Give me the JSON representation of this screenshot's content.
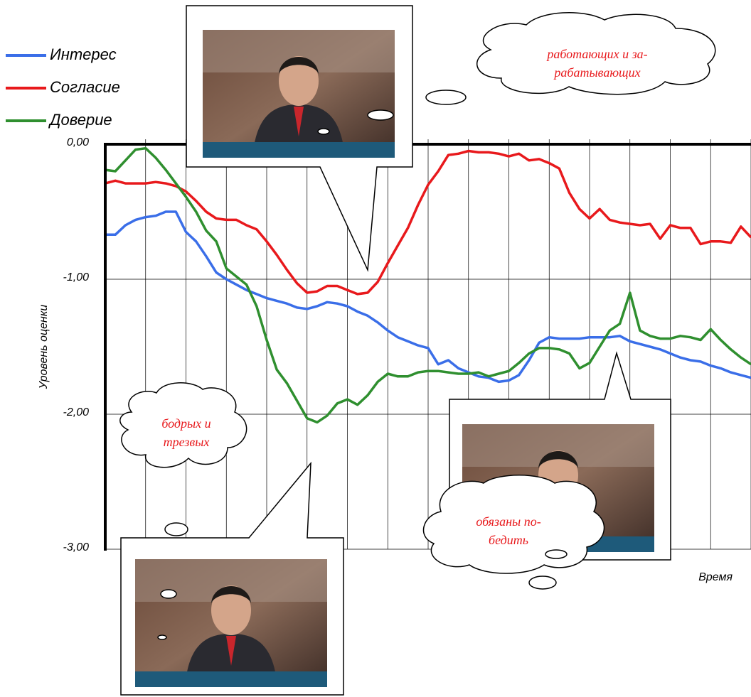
{
  "chart_data": {
    "type": "line",
    "y_label": "Уровень оценки",
    "x_label": "Время",
    "ylim": [
      -3,
      0
    ],
    "yticks": [
      {
        "value": 0,
        "label": "0,00"
      },
      {
        "value": -1,
        "label": "-1,00"
      },
      {
        "value": -2,
        "label": "-2,00"
      },
      {
        "value": -3,
        "label": "-3,00"
      }
    ],
    "grid": true,
    "legend": "top-left",
    "categories": [
      null,
      null,
      null,
      null,
      null,
      null,
      null,
      null,
      null,
      null,
      null,
      null,
      null,
      null,
      null,
      null,
      null,
      null,
      null,
      null,
      null,
      null,
      null,
      null,
      null,
      null,
      null,
      null,
      null,
      null,
      null,
      null,
      null,
      null,
      null,
      null,
      null,
      null,
      null,
      null,
      null,
      null,
      null,
      null,
      null,
      null,
      null,
      null,
      null,
      null,
      null,
      null,
      null,
      null,
      null,
      null,
      null,
      null,
      null,
      null,
      null,
      null,
      null,
      null,
      null
    ],
    "series": [
      {
        "name": "Интерес",
        "color": "#3a6ee8",
        "values": [
          -0.67,
          -0.67,
          -0.6,
          -0.56,
          -0.54,
          -0.53,
          -0.5,
          -0.5,
          -0.65,
          -0.72,
          -0.83,
          -0.95,
          -1.0,
          -1.04,
          -1.08,
          -1.11,
          -1.14,
          -1.16,
          -1.18,
          -1.21,
          -1.22,
          -1.2,
          -1.17,
          -1.18,
          -1.2,
          -1.24,
          -1.27,
          -1.32,
          -1.38,
          -1.43,
          -1.46,
          -1.49,
          -1.51,
          -1.63,
          -1.6,
          -1.66,
          -1.69,
          -1.72,
          -1.73,
          -1.76,
          -1.75,
          -1.71,
          -1.6,
          -1.47,
          -1.43,
          -1.44,
          -1.44,
          -1.44,
          -1.43,
          -1.43,
          -1.43,
          -1.42,
          -1.46,
          -1.48,
          -1.5,
          -1.52,
          -1.55,
          -1.58,
          -1.6,
          -1.61,
          -1.64,
          -1.66,
          -1.69,
          -1.71,
          -1.73
        ]
      },
      {
        "name": "Согласие",
        "color": "#e8191c",
        "values": [
          -0.29,
          -0.27,
          -0.29,
          -0.29,
          -0.29,
          -0.28,
          -0.29,
          -0.31,
          -0.35,
          -0.42,
          -0.5,
          -0.55,
          -0.56,
          -0.56,
          -0.6,
          -0.63,
          -0.72,
          -0.82,
          -0.93,
          -1.03,
          -1.1,
          -1.09,
          -1.05,
          -1.05,
          -1.08,
          -1.11,
          -1.1,
          -1.02,
          -0.88,
          -0.75,
          -0.62,
          -0.45,
          -0.3,
          -0.2,
          -0.08,
          -0.07,
          -0.05,
          -0.06,
          -0.06,
          -0.07,
          -0.09,
          -0.07,
          -0.12,
          -0.11,
          -0.14,
          -0.18,
          -0.36,
          -0.48,
          -0.55,
          -0.48,
          -0.56,
          -0.58,
          -0.59,
          -0.6,
          -0.59,
          -0.7,
          -0.6,
          -0.62,
          -0.62,
          -0.74,
          -0.72,
          -0.72,
          -0.73,
          -0.61,
          -0.69
        ]
      },
      {
        "name": "Доверие",
        "color": "#2f8f2f",
        "values": [
          -0.19,
          -0.2,
          -0.12,
          -0.04,
          -0.03,
          -0.1,
          -0.19,
          -0.29,
          -0.39,
          -0.5,
          -0.64,
          -0.72,
          -0.92,
          -0.98,
          -1.04,
          -1.2,
          -1.45,
          -1.67,
          -1.77,
          -1.9,
          -2.03,
          -2.06,
          -2.01,
          -1.92,
          -1.89,
          -1.93,
          -1.86,
          -1.76,
          -1.7,
          -1.72,
          -1.72,
          -1.69,
          -1.68,
          -1.68,
          -1.69,
          -1.7,
          -1.7,
          -1.69,
          -1.72,
          -1.7,
          -1.68,
          -1.62,
          -1.55,
          -1.51,
          -1.51,
          -1.52,
          -1.55,
          -1.66,
          -1.62,
          -1.5,
          -1.38,
          -1.33,
          -1.1,
          -1.38,
          -1.42,
          -1.44,
          -1.44,
          -1.42,
          -1.43,
          -1.45,
          -1.37,
          -1.45,
          -1.52,
          -1.58,
          -1.63
        ]
      }
    ],
    "annotations": [
      {
        "lines": [
          "работающих и за-",
          "рабатывающих"
        ]
      },
      {
        "lines": [
          "бодрых и",
          "трезвых"
        ]
      },
      {
        "lines": [
          "обязаны по-",
          "бедить"
        ]
      }
    ]
  }
}
